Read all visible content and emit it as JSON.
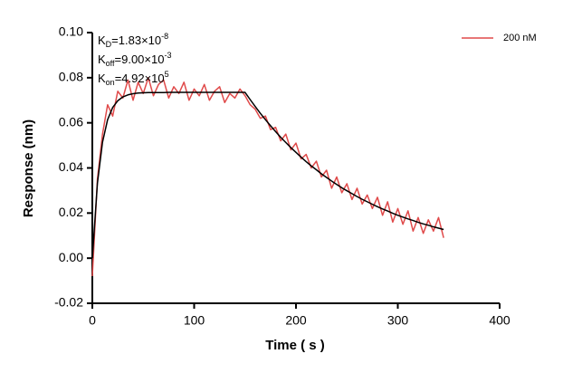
{
  "chart_data": {
    "type": "line",
    "x_label": "Time ( s )",
    "y_label": "Response (nm)",
    "xlim": [
      0,
      400
    ],
    "xticks": [
      0,
      100,
      200,
      300,
      400
    ],
    "ylim": [
      -0.02,
      0.1
    ],
    "yticks": [
      {
        "value": -0.02,
        "label": "-0.02"
      },
      {
        "value": 0,
        "label": "0.00"
      },
      {
        "value": 0.02,
        "label": "0.02"
      },
      {
        "value": 0.04,
        "label": "0.04"
      },
      {
        "value": 0.06,
        "label": "0.06"
      },
      {
        "value": 0.08,
        "label": "0.08"
      },
      {
        "value": 0.1,
        "label": "0.10"
      }
    ],
    "annotations": [
      {
        "base": "K",
        "sub": "D",
        "text": "=1.83×10",
        "sup": "-8"
      },
      {
        "base": "K",
        "sub": "off",
        "text": "=9.00×10",
        "sup": "-3"
      },
      {
        "base": "K",
        "sub": "on",
        "text": "=4.92×10",
        "sup": "5"
      }
    ],
    "legend": "top-right",
    "x": [
      0,
      5,
      10,
      15,
      20,
      25,
      30,
      35,
      40,
      45,
      50,
      55,
      60,
      65,
      70,
      75,
      80,
      85,
      90,
      95,
      100,
      105,
      110,
      115,
      120,
      125,
      130,
      135,
      140,
      145,
      150,
      155,
      160,
      165,
      170,
      175,
      180,
      185,
      190,
      195,
      200,
      205,
      210,
      215,
      220,
      225,
      230,
      235,
      240,
      245,
      250,
      255,
      260,
      265,
      270,
      275,
      280,
      285,
      290,
      295,
      300,
      305,
      310,
      315,
      320,
      325,
      330,
      335,
      340,
      345
    ],
    "series": [
      {
        "name": "200 nM",
        "color": "#e04a4a",
        "values": [
          -0.008,
          0.035,
          0.055,
          0.068,
          0.063,
          0.074,
          0.071,
          0.079,
          0.07,
          0.078,
          0.073,
          0.08,
          0.072,
          0.077,
          0.079,
          0.071,
          0.076,
          0.073,
          0.078,
          0.07,
          0.075,
          0.072,
          0.077,
          0.07,
          0.074,
          0.076,
          0.069,
          0.073,
          0.071,
          0.075,
          0.072,
          0.068,
          0.066,
          0.062,
          0.063,
          0.057,
          0.058,
          0.052,
          0.055,
          0.048,
          0.051,
          0.044,
          0.046,
          0.04,
          0.043,
          0.036,
          0.039,
          0.031,
          0.036,
          0.029,
          0.033,
          0.026,
          0.031,
          0.024,
          0.028,
          0.022,
          0.027,
          0.019,
          0.025,
          0.016,
          0.022,
          0.015,
          0.021,
          0.012,
          0.018,
          0.011,
          0.017,
          0.012,
          0.018,
          0.009
        ]
      }
    ],
    "fit": {
      "color": "#000000",
      "values": [
        0,
        0.0332,
        0.0514,
        0.0614,
        0.0668,
        0.0698,
        0.0715,
        0.0724,
        0.0729,
        0.0732,
        0.0733,
        0.0734,
        0.0734,
        0.0734,
        0.0734,
        0.0735,
        0.0735,
        0.0735,
        0.0735,
        0.0735,
        0.0735,
        0.0735,
        0.0735,
        0.0735,
        0.0735,
        0.0735,
        0.0735,
        0.0735,
        0.0735,
        0.0735,
        0.0735,
        0.0703,
        0.0672,
        0.0642,
        0.0614,
        0.0587,
        0.0561,
        0.0536,
        0.0513,
        0.049,
        0.0469,
        0.0448,
        0.0428,
        0.0409,
        0.0392,
        0.0374,
        0.0358,
        0.0342,
        0.0327,
        0.0312,
        0.0299,
        0.0286,
        0.0273,
        0.0261,
        0.025,
        0.0239,
        0.0228,
        0.0218,
        0.0209,
        0.0199,
        0.019,
        0.0182,
        0.0174,
        0.0167,
        0.0159,
        0.0152,
        0.0146,
        0.0139,
        0.0133,
        0.0127
      ]
    }
  }
}
